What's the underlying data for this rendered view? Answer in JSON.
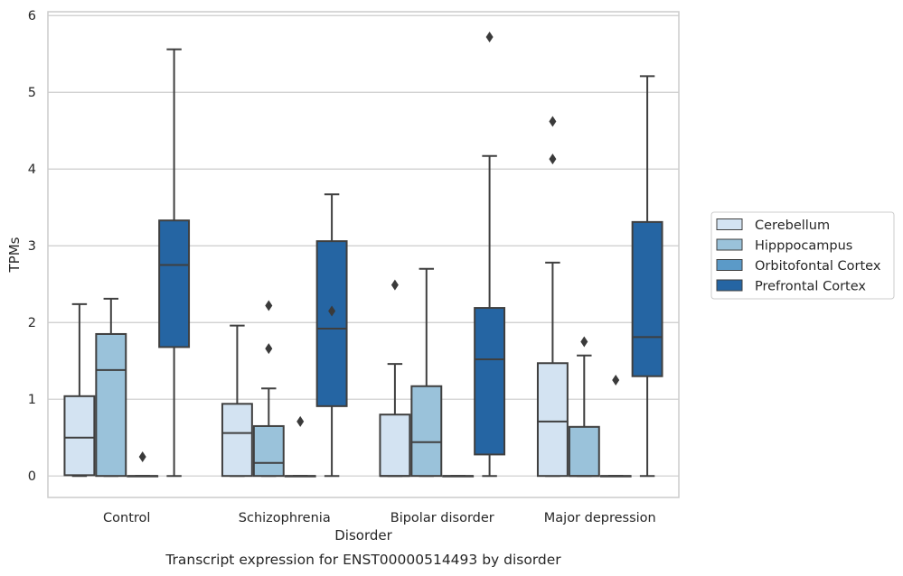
{
  "caption": "Transcript expression for ENST00000514493 by disorder",
  "chart_data": {
    "type": "box",
    "xlabel": "Disorder",
    "ylabel": "TPMs",
    "ylim": [
      -0.28,
      6.05
    ],
    "yticks": [
      0,
      1,
      2,
      3,
      4,
      5,
      6
    ],
    "categories": [
      "Control",
      "Schizophrenia",
      "Bipolar disorder",
      "Major depression"
    ],
    "grid": true,
    "legend_position": "right",
    "series": [
      {
        "name": "Cerebellum",
        "color": "#d3e3f2",
        "boxes": [
          {
            "whislo": 0,
            "q1": 0.01,
            "med": 0.5,
            "q3": 1.04,
            "whishi": 2.24,
            "fliers": []
          },
          {
            "whislo": 0,
            "q1": 0,
            "med": 0.56,
            "q3": 0.94,
            "whishi": 1.96,
            "fliers": []
          },
          {
            "whislo": 0,
            "q1": 0,
            "med": 0,
            "q3": 0.8,
            "whishi": 1.46,
            "fliers": [
              2.49
            ]
          },
          {
            "whislo": 0,
            "q1": 0,
            "med": 0.71,
            "q3": 1.47,
            "whishi": 2.78,
            "fliers": [
              4.13,
              4.62
            ]
          }
        ]
      },
      {
        "name": "Hipppocampus",
        "color": "#9ac2da",
        "boxes": [
          {
            "whislo": 0,
            "q1": 0,
            "med": 1.38,
            "q3": 1.85,
            "whishi": 2.31,
            "fliers": []
          },
          {
            "whislo": 0,
            "q1": 0,
            "med": 0.17,
            "q3": 0.65,
            "whishi": 1.14,
            "fliers": [
              1.66,
              2.22
            ]
          },
          {
            "whislo": 0,
            "q1": 0,
            "med": 0.44,
            "q3": 1.17,
            "whishi": 2.7,
            "fliers": []
          },
          {
            "whislo": 0,
            "q1": 0,
            "med": 0,
            "q3": 0.64,
            "whishi": 1.57,
            "fliers": [
              1.75
            ]
          }
        ]
      },
      {
        "name": "Orbitofontal Cortex",
        "color": "#5b9ac8",
        "boxes": [
          {
            "whislo": 0,
            "q1": 0,
            "med": 0,
            "q3": 0,
            "whishi": 0,
            "fliers": [
              0.25
            ]
          },
          {
            "whislo": 0,
            "q1": 0,
            "med": 0,
            "q3": 0,
            "whishi": 0,
            "fliers": [
              0.71
            ]
          },
          {
            "whislo": 0,
            "q1": 0,
            "med": 0,
            "q3": 0,
            "whishi": 0,
            "fliers": []
          },
          {
            "whislo": 0,
            "q1": 0,
            "med": 0,
            "q3": 0,
            "whishi": 0,
            "fliers": [
              1.25
            ]
          }
        ]
      },
      {
        "name": "Prefrontal Cortex",
        "color": "#2565a3",
        "boxes": [
          {
            "whislo": 0,
            "q1": 1.68,
            "med": 2.75,
            "q3": 3.33,
            "whishi": 5.56,
            "fliers": []
          },
          {
            "whislo": 0,
            "q1": 0.91,
            "med": 1.92,
            "q3": 3.06,
            "whishi": 3.67,
            "fliers": [
              2.15
            ]
          },
          {
            "whislo": 0,
            "q1": 0.28,
            "med": 1.52,
            "q3": 2.19,
            "whishi": 4.17,
            "fliers": [
              5.72
            ]
          },
          {
            "whislo": 0,
            "q1": 1.3,
            "med": 1.81,
            "q3": 3.31,
            "whishi": 5.21,
            "fliers": []
          }
        ]
      }
    ]
  }
}
